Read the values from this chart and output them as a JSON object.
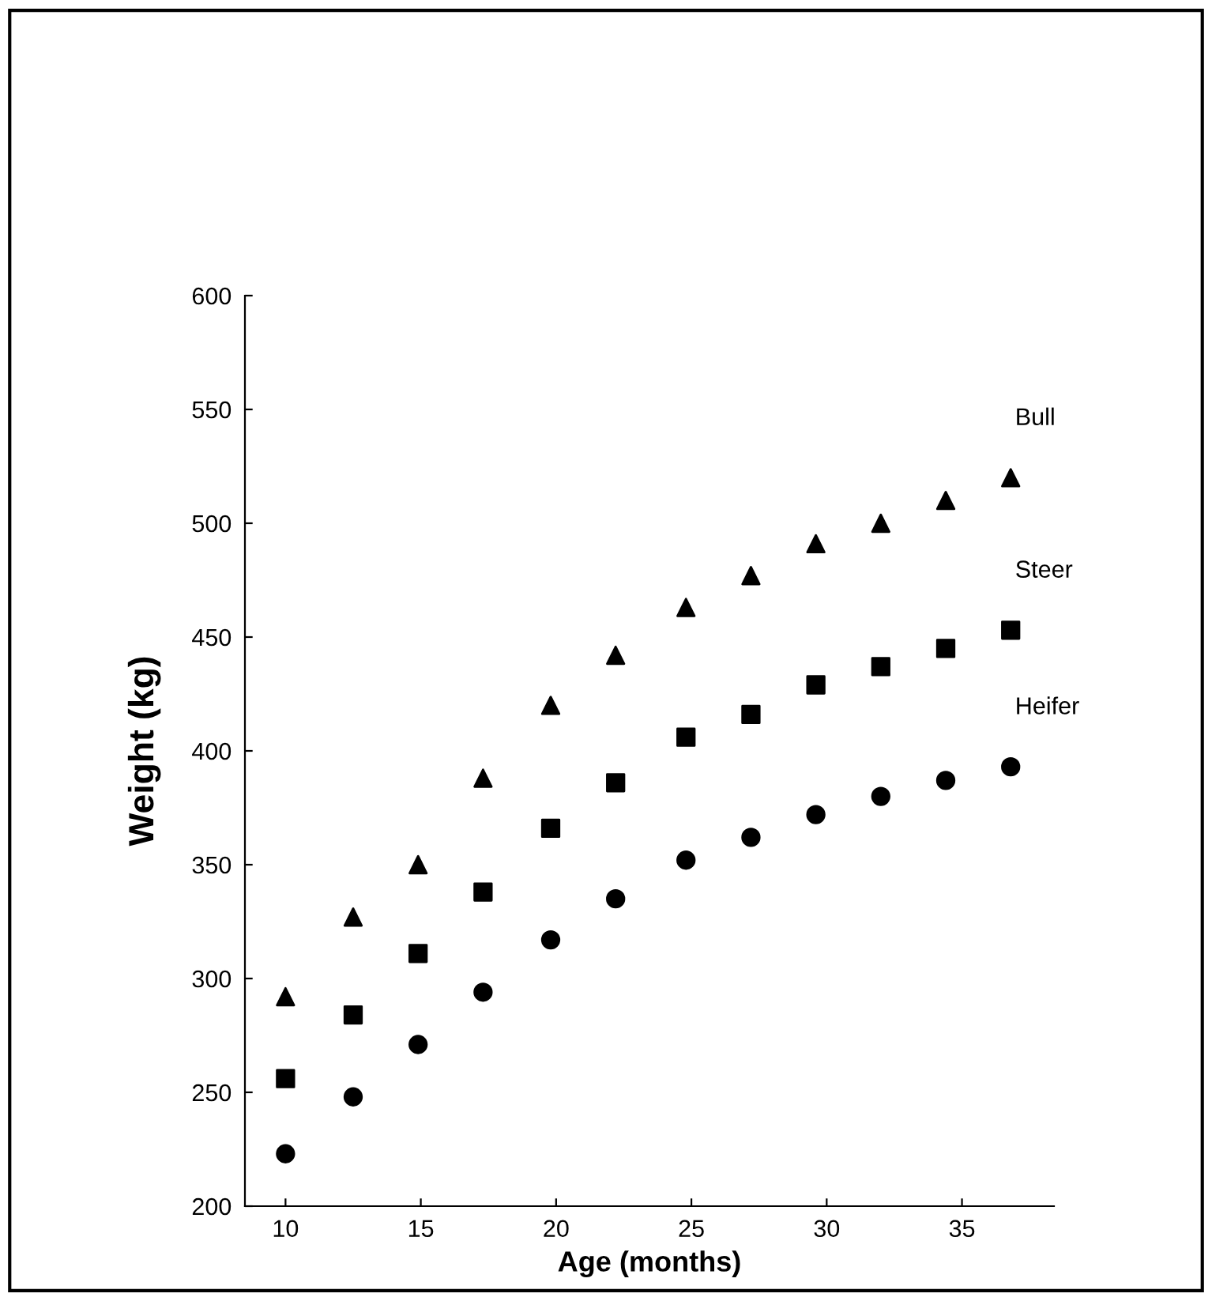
{
  "chart_data": {
    "type": "scatter",
    "xlabel": "Age (months)",
    "ylabel": "Weight (kg)",
    "x": [
      10,
      12.5,
      14.9,
      17.3,
      19.8,
      22.2,
      24.8,
      27.2,
      29.6,
      32.0,
      34.4,
      36.8
    ],
    "series": [
      {
        "name": "Bull",
        "color": "#000000",
        "marker": "triangle",
        "values": [
          292,
          327,
          350,
          388,
          420,
          442,
          463,
          477,
          491,
          500,
          510,
          520
        ]
      },
      {
        "name": "Steer",
        "color": "#000000",
        "marker": "square",
        "values": [
          256,
          284,
          311,
          338,
          366,
          386,
          406,
          416,
          429,
          437,
          445,
          453
        ]
      },
      {
        "name": "Heifer",
        "color": "#000000",
        "marker": "circle",
        "values": [
          223,
          248,
          271,
          294,
          317,
          335,
          352,
          362,
          372,
          380,
          387,
          393
        ]
      }
    ],
    "xlim": [
      8.5,
      38.4
    ],
    "xticks": [
      10,
      15,
      20,
      25,
      30,
      35
    ],
    "ylim": [
      200,
      600
    ],
    "yticks": [
      200,
      250,
      300,
      350,
      400,
      450,
      500,
      550,
      600
    ],
    "grid": false,
    "legend": false
  }
}
